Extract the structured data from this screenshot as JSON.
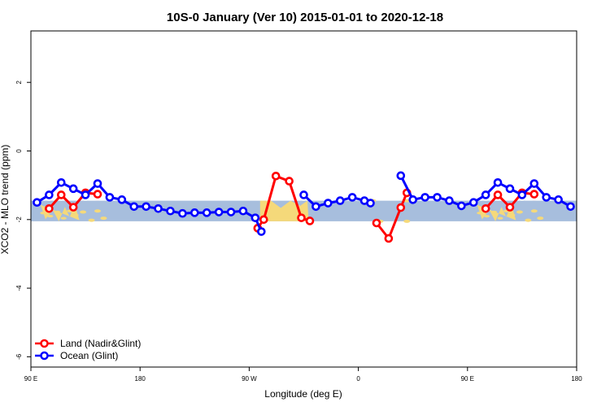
{
  "chart_data": {
    "type": "line",
    "title": "10S-0 January (Ver 10)   2015-01-01 to 2020-12-18",
    "xlabel": "Longitude (deg E)",
    "ylabel": "XCO2 - MLO trend (ppm)",
    "xlim": [
      90,
      540
    ],
    "ylim": [
      -6.3,
      3.5
    ],
    "x_ticks": [
      {
        "value": 90,
        "label": "90 E"
      },
      {
        "value": 180,
        "label": "180"
      },
      {
        "value": 270,
        "label": "90 W"
      },
      {
        "value": 360,
        "label": "0"
      },
      {
        "value": 450,
        "label": "90 E"
      },
      {
        "value": 540,
        "label": "180"
      }
    ],
    "y_ticks": [
      {
        "value": 2,
        "label": "2"
      },
      {
        "value": 0,
        "label": "0"
      },
      {
        "value": -2,
        "label": "-2"
      },
      {
        "value": -4,
        "label": "-4"
      },
      {
        "value": -6,
        "label": "-6"
      }
    ],
    "grid": false,
    "legend_position": "bottom-left",
    "map_band_ylim": [
      -2.05,
      -1.45
    ],
    "series": [
      {
        "name": "Land (Nadir&Glint)",
        "color": "#ff0000",
        "segments": [
          [
            [
              105,
              -1.68
            ],
            [
              115,
              -1.28
            ],
            [
              125,
              -1.64
            ],
            [
              135,
              -1.22
            ],
            [
              145,
              -1.26
            ]
          ],
          [
            [
              277,
              -2.25
            ],
            [
              282,
              -2.0
            ],
            [
              292,
              -0.73
            ],
            [
              303,
              -0.88
            ],
            [
              313,
              -1.95
            ],
            [
              320,
              -2.04
            ]
          ],
          [
            [
              375,
              -2.1
            ],
            [
              385,
              -2.55
            ],
            [
              395,
              -1.65
            ],
            [
              400,
              -1.22
            ]
          ],
          [
            [
              465,
              -1.68
            ],
            [
              475,
              -1.28
            ],
            [
              485,
              -1.64
            ],
            [
              495,
              -1.22
            ],
            [
              505,
              -1.26
            ]
          ]
        ]
      },
      {
        "name": "Ocean (Glint)",
        "color": "#0000ff",
        "segments": [
          [
            [
              95,
              -1.5
            ],
            [
              105,
              -1.28
            ],
            [
              115,
              -0.92
            ],
            [
              125,
              -1.1
            ],
            [
              135,
              -1.28
            ],
            [
              145,
              -0.95
            ],
            [
              155,
              -1.35
            ],
            [
              165,
              -1.42
            ],
            [
              175,
              -1.62
            ],
            [
              185,
              -1.62
            ],
            [
              195,
              -1.68
            ],
            [
              205,
              -1.75
            ],
            [
              215,
              -1.82
            ],
            [
              225,
              -1.8
            ],
            [
              235,
              -1.8
            ],
            [
              245,
              -1.78
            ],
            [
              255,
              -1.78
            ],
            [
              265,
              -1.75
            ],
            [
              275,
              -1.95
            ],
            [
              280,
              -2.35
            ]
          ],
          [
            [
              315,
              -1.28
            ],
            [
              325,
              -1.62
            ],
            [
              335,
              -1.52
            ],
            [
              345,
              -1.45
            ],
            [
              355,
              -1.35
            ],
            [
              365,
              -1.45
            ],
            [
              370,
              -1.52
            ]
          ],
          [
            [
              395,
              -0.72
            ],
            [
              405,
              -1.42
            ],
            [
              415,
              -1.35
            ],
            [
              425,
              -1.35
            ],
            [
              435,
              -1.45
            ],
            [
              445,
              -1.6
            ],
            [
              455,
              -1.5
            ],
            [
              465,
              -1.28
            ],
            [
              475,
              -0.92
            ],
            [
              485,
              -1.1
            ],
            [
              495,
              -1.28
            ],
            [
              505,
              -0.95
            ],
            [
              515,
              -1.35
            ],
            [
              525,
              -1.42
            ],
            [
              535,
              -1.62
            ]
          ]
        ]
      }
    ]
  }
}
